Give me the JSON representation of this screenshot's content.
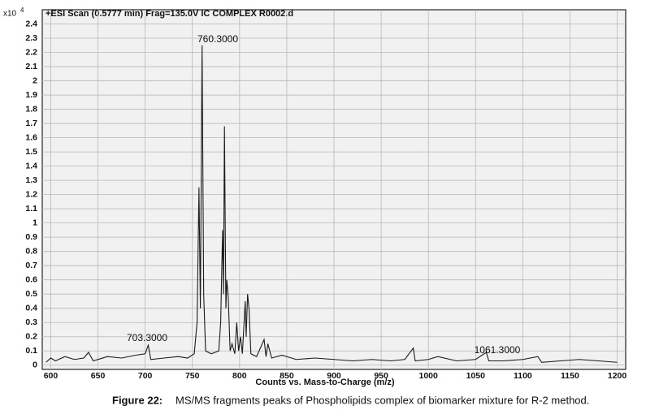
{
  "chart_data": {
    "type": "line",
    "title": "+ESI Scan (0.5777 min) Frag=135.0V IC COMPLEX R0002.d",
    "y_multiplier": "x10",
    "y_multiplier_exp": "4",
    "xlabel": "Counts vs. Mass-to-Charge (m/z)",
    "annotations": [
      "760.3000",
      "703.3000",
      "1061.3000"
    ],
    "caption_label": "Figure 22:",
    "caption_text": "MS/MS fragments peaks of Phospholipids complex of biomarker mixture for R-2 method.",
    "xlim": [
      591,
      1209
    ],
    "ylim": [
      -0.03,
      2.5
    ],
    "xticks": [
      600,
      650,
      700,
      750,
      800,
      850,
      900,
      950,
      1000,
      1050,
      1100,
      1150,
      1200
    ],
    "yticks": [
      0,
      0.1,
      0.2,
      0.3,
      0.4,
      0.5,
      0.6,
      0.7,
      0.8,
      0.9,
      1,
      1.1,
      1.2,
      1.3,
      1.4,
      1.5,
      1.6,
      1.7,
      1.8,
      1.9,
      2,
      2.1,
      2.2,
      2.3,
      2.4
    ],
    "grid": true,
    "x": [
      595,
      600,
      605,
      615,
      625,
      635,
      640,
      645,
      660,
      675,
      690,
      700,
      703.3,
      706,
      720,
      735,
      745,
      752,
      755,
      757,
      758.5,
      760.3,
      762,
      764,
      770,
      778,
      780,
      782,
      783,
      784,
      785.5,
      786.5,
      788,
      790,
      792,
      795,
      797,
      799,
      801,
      803,
      806,
      807,
      808.5,
      810,
      812,
      818,
      826,
      828,
      830,
      834,
      845,
      860,
      880,
      900,
      920,
      940,
      960,
      975,
      984,
      986,
      1000,
      1010,
      1030,
      1050,
      1061.3,
      1064,
      1080,
      1100,
      1116,
      1120,
      1140,
      1160,
      1180,
      1200
    ],
    "series": [
      {
        "name": "spectrum",
        "color": "#1a1a1a",
        "values": [
          0.02,
          0.05,
          0.03,
          0.06,
          0.04,
          0.05,
          0.09,
          0.03,
          0.06,
          0.05,
          0.07,
          0.08,
          0.14,
          0.04,
          0.05,
          0.06,
          0.05,
          0.08,
          0.3,
          1.25,
          0.4,
          2.25,
          0.5,
          0.1,
          0.08,
          0.1,
          0.3,
          0.95,
          0.5,
          1.68,
          0.4,
          0.6,
          0.48,
          0.1,
          0.15,
          0.08,
          0.3,
          0.1,
          0.2,
          0.08,
          0.45,
          0.2,
          0.5,
          0.4,
          0.08,
          0.06,
          0.18,
          0.06,
          0.15,
          0.05,
          0.07,
          0.04,
          0.05,
          0.04,
          0.03,
          0.04,
          0.03,
          0.04,
          0.12,
          0.03,
          0.04,
          0.06,
          0.03,
          0.04,
          0.09,
          0.03,
          0.03,
          0.04,
          0.06,
          0.02,
          0.03,
          0.04,
          0.03,
          0.02
        ]
      }
    ]
  }
}
